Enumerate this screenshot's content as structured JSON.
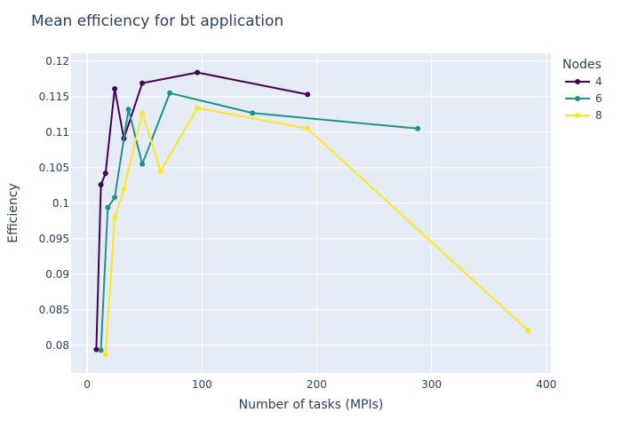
{
  "chart_data": {
    "type": "line",
    "title": "Mean efficiency for bt application",
    "xlabel": "Number of tasks (MPIs)",
    "ylabel": "Efficiency",
    "xlim": [
      -14,
      404
    ],
    "ylim": [
      0.0761,
      0.1211
    ],
    "xticks": [
      0,
      100,
      200,
      300,
      400
    ],
    "xtick_labels": [
      "0",
      "100",
      "200",
      "300",
      "400"
    ],
    "yticks": [
      0.08,
      0.085,
      0.09,
      0.095,
      0.1,
      0.105,
      0.11,
      0.115,
      0.12
    ],
    "ytick_labels": [
      "0.08",
      "0.085",
      "0.09",
      "0.095",
      "0.1",
      "0.105",
      "0.11",
      "0.115",
      "0.12"
    ],
    "grid": true,
    "legend": {
      "title": "Nodes",
      "placement": "top-right outside"
    },
    "series": [
      {
        "name": "4",
        "color": "#440154",
        "x": [
          8,
          12,
          16,
          24,
          32,
          48,
          96,
          192
        ],
        "y": [
          0.0794,
          0.1026,
          0.1042,
          0.1161,
          0.1091,
          0.1169,
          0.1184,
          0.1153
        ]
      },
      {
        "name": "6",
        "color": "#21918c",
        "x": [
          12,
          18,
          24,
          36,
          48,
          72,
          144,
          288
        ],
        "y": [
          0.0793,
          0.0994,
          0.1008,
          0.1132,
          0.1055,
          0.1155,
          0.1127,
          0.1105
        ]
      },
      {
        "name": "8",
        "color": "#fde725",
        "x": [
          16,
          24,
          32,
          48,
          64,
          96,
          192,
          384
        ],
        "y": [
          0.0787,
          0.098,
          0.102,
          0.1127,
          0.1045,
          0.1134,
          0.1105,
          0.0821
        ]
      }
    ]
  }
}
